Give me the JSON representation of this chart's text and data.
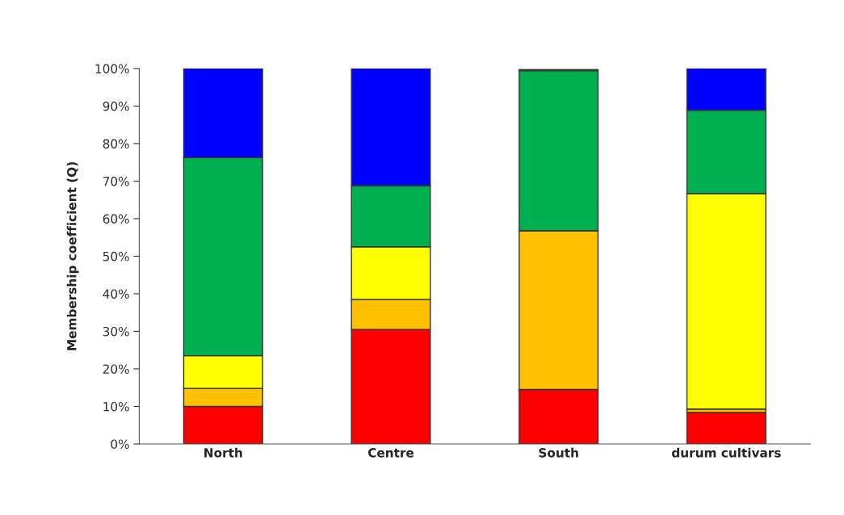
{
  "chart_data": {
    "type": "bar",
    "stacked": true,
    "ylabel": "Membership coefficient (Q)",
    "categories": [
      "North",
      "Centre",
      "South",
      "durum cultivars"
    ],
    "series": [
      {
        "color": "#ff0000",
        "values": [
          10,
          30.5,
          14.5,
          8.4
        ]
      },
      {
        "color": "#ffc000",
        "values": [
          4.8,
          8,
          42.3,
          0.9
        ]
      },
      {
        "color": "#ffff00",
        "values": [
          8.7,
          14,
          null,
          57.4
        ]
      },
      {
        "color": "#00b050",
        "values": [
          52.8,
          16.3,
          42.6,
          22.2
        ]
      },
      {
        "color": "#0000ff",
        "values": [
          23.7,
          31.2,
          0.3,
          11.1
        ]
      }
    ],
    "ylim": [
      0,
      100
    ],
    "yticks": [
      {
        "value": 0,
        "label": "0%"
      },
      {
        "value": 10,
        "label": "10%"
      },
      {
        "value": 20,
        "label": "20%"
      },
      {
        "value": 30,
        "label": "30%"
      },
      {
        "value": 40,
        "label": "40%"
      },
      {
        "value": 50,
        "label": "50%"
      },
      {
        "value": 60,
        "label": "60%"
      },
      {
        "value": 70,
        "label": "70%"
      },
      {
        "value": 80,
        "label": "80%"
      },
      {
        "value": 90,
        "label": "90%"
      },
      {
        "value": 100,
        "label": "100%"
      }
    ],
    "grid": false,
    "legend": false
  }
}
